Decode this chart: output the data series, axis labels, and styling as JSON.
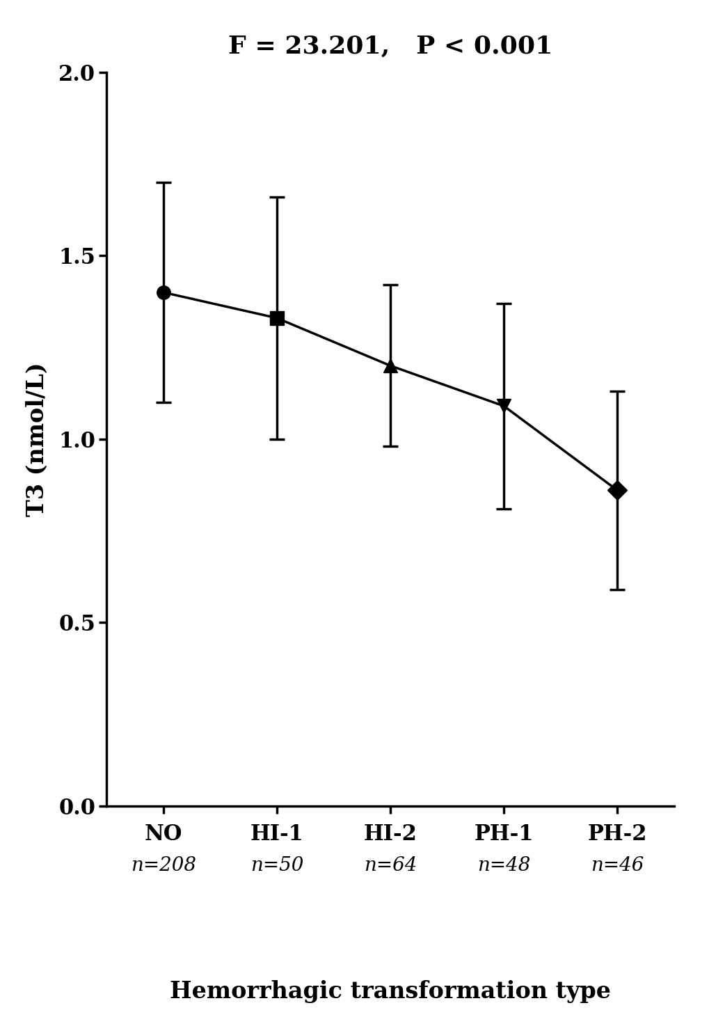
{
  "title": "F = 23.201,   P < 0.001",
  "xlabel": "Hemorrhagic transformation type",
  "ylabel": "T3 (nmol/L)",
  "categories": [
    "NO",
    "HI-1",
    "HI-2",
    "PH-1",
    "PH-2"
  ],
  "sample_sizes": [
    "n=208",
    "n=50",
    "n=64",
    "n=48",
    "n=46"
  ],
  "means": [
    1.4,
    1.33,
    1.2,
    1.09,
    0.86
  ],
  "errors": [
    0.3,
    0.33,
    0.22,
    0.28,
    0.27
  ],
  "markers": [
    "o",
    "s",
    "^",
    "v",
    "D"
  ],
  "marker_size": 14,
  "line_color": "#000000",
  "line_width": 2.5,
  "ylim": [
    0.0,
    2.0
  ],
  "yticks": [
    0.0,
    0.5,
    1.0,
    1.5,
    2.0
  ],
  "title_fontsize": 26,
  "axis_label_fontsize": 24,
  "tick_fontsize": 22,
  "sample_size_fontsize": 20,
  "background_color": "#ffffff",
  "capsize": 8,
  "cap_thickness": 2.5,
  "error_linewidth": 2.5
}
